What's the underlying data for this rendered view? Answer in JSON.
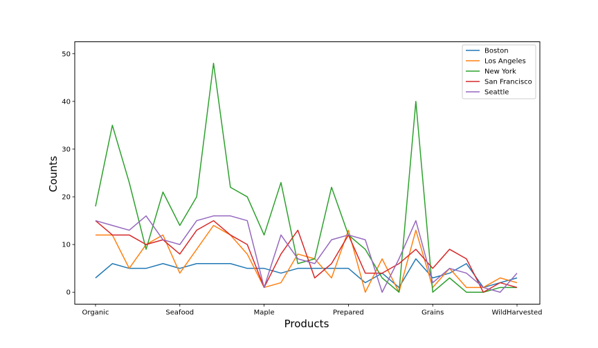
{
  "chart_data": {
    "type": "line",
    "xlabel": "Products",
    "ylabel": "Counts",
    "ylim": [
      -2.5,
      52.5
    ],
    "yticks": [
      0,
      10,
      20,
      30,
      40,
      50
    ],
    "xtick_labels": [
      {
        "index": 0,
        "label": "Organic"
      },
      {
        "index": 5,
        "label": "Seafood"
      },
      {
        "index": 10,
        "label": "Maple"
      },
      {
        "index": 15,
        "label": "Prepared"
      },
      {
        "index": 20,
        "label": "Grains"
      },
      {
        "index": 25,
        "label": "WildHarvested"
      }
    ],
    "x_count": 26,
    "grid": false,
    "legend_position": "top-right",
    "series": [
      {
        "name": "Boston",
        "color": "#1f77b4",
        "values": [
          3,
          6,
          5,
          5,
          6,
          5,
          6,
          6,
          6,
          5,
          5,
          4,
          5,
          5,
          5,
          5,
          2,
          4,
          1,
          7,
          3,
          4,
          6,
          1,
          2,
          3
        ]
      },
      {
        "name": "Los Angeles",
        "color": "#ff7f0e",
        "values": [
          12,
          12,
          5,
          10,
          12,
          4,
          9,
          14,
          12,
          8,
          1,
          2,
          8,
          7,
          3,
          13,
          0,
          7,
          0,
          13,
          1,
          5,
          1,
          1,
          3,
          2
        ]
      },
      {
        "name": "New York",
        "color": "#2ca02c",
        "values": [
          18,
          35,
          23,
          9,
          21,
          14,
          20,
          48,
          22,
          20,
          12,
          23,
          6,
          7,
          22,
          12,
          9,
          3,
          0,
          40,
          0,
          3,
          0,
          0,
          1,
          1
        ]
      },
      {
        "name": "San Francisco",
        "color": "#d62728",
        "values": [
          15,
          12,
          12,
          10,
          11,
          8,
          13,
          15,
          12,
          10,
          1,
          8,
          13,
          3,
          6,
          12,
          4,
          4,
          6,
          9,
          5,
          9,
          7,
          0,
          2,
          1
        ]
      },
      {
        "name": "Seattle",
        "color": "#9467bd",
        "values": [
          15,
          14,
          13,
          16,
          11,
          10,
          15,
          16,
          16,
          15,
          1,
          12,
          7,
          6,
          11,
          12,
          11,
          0,
          7,
          15,
          2,
          5,
          4,
          1,
          0,
          4
        ]
      }
    ]
  }
}
